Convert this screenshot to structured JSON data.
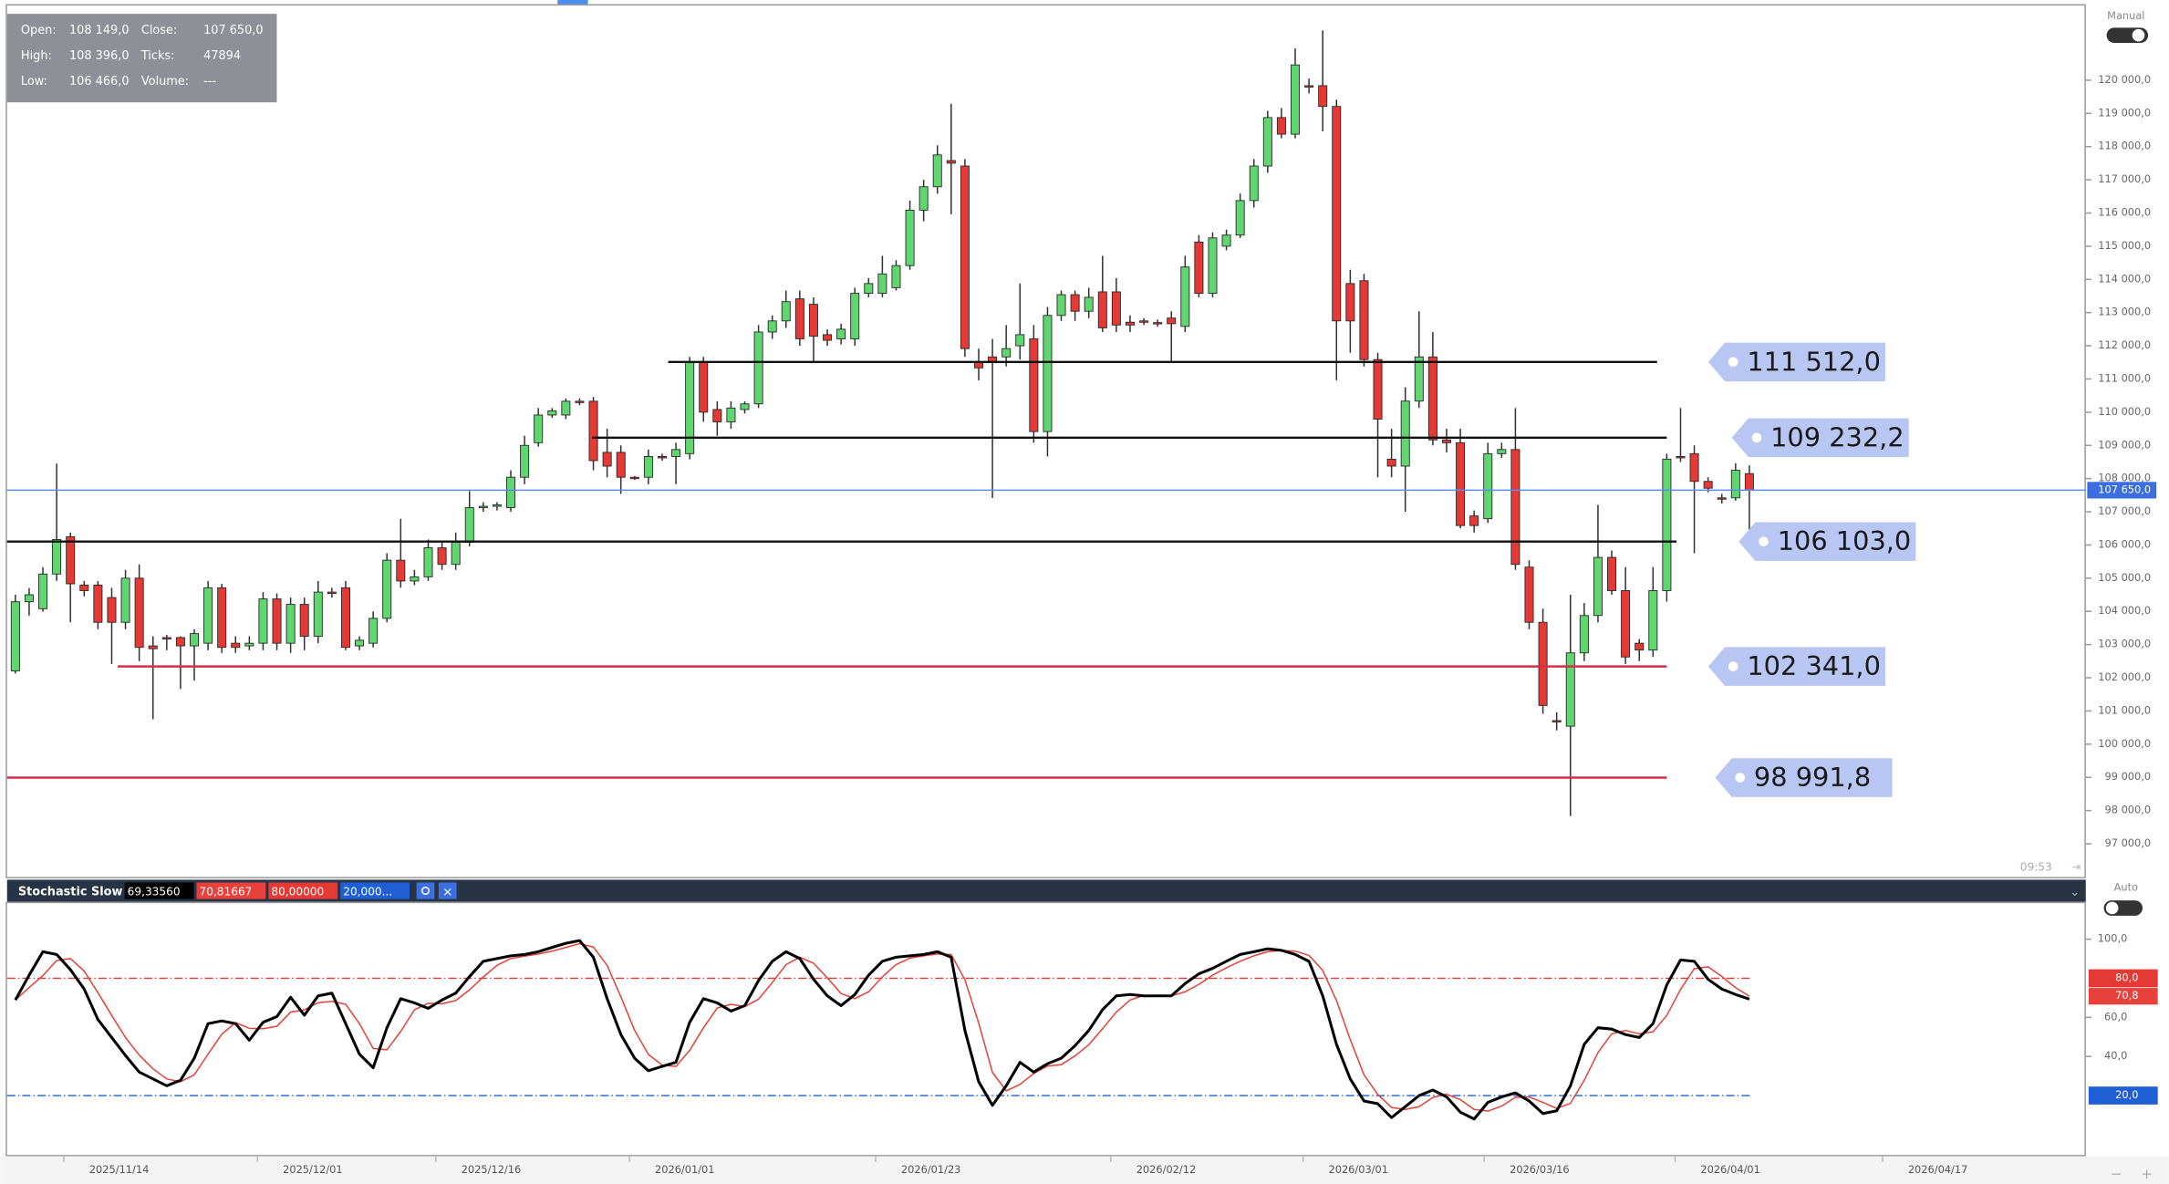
{
  "chart_data": {
    "type": "candlestick",
    "info": {
      "rows": [
        [
          {
            "label": "Open:",
            "value": "108 149,0"
          },
          {
            "label": "Close:",
            "value": "107 650,0"
          }
        ],
        [
          {
            "label": "High:",
            "value": "108 396,0"
          },
          {
            "label": "Ticks:",
            "value": "47894"
          }
        ],
        [
          {
            "label": "Low:",
            "value": "106 466,0"
          },
          {
            "label": "Volume:",
            "value": "---"
          }
        ]
      ]
    },
    "mode_label": "Manual",
    "time_label": "09:53",
    "up_color": "#5fd66f",
    "down_color": "#e53935",
    "open": [
      102207,
      104290,
      104080,
      105125,
      106250,
      104790,
      104790,
      104415,
      103670,
      105000,
      102960,
      103210,
      103210,
      102960,
      103040,
      104710,
      103040,
      102960,
      103040,
      104375,
      103040,
      104210,
      103250,
      104580,
      104710,
      102960,
      103040,
      103790,
      105540,
      104915,
      105040,
      105915,
      105415,
      106080,
      107125,
      107165,
      107125,
      108040,
      109080,
      109915,
      109915,
      110330,
      110330,
      108790,
      108790,
      108040,
      108040,
      108665,
      108665,
      108750,
      111500,
      110080,
      109710,
      110080,
      110250,
      112415,
      112750,
      113415,
      113250,
      112335,
      112210,
      112210,
      113580,
      113580,
      113750,
      114415,
      116085,
      116790,
      117580,
      117415,
      111500,
      111665,
      111665,
      112000,
      112210,
      109415,
      112915,
      113540,
      113040,
      113625,
      113625,
      112710,
      112750,
      112700,
      112835,
      112585,
      115125,
      113580,
      115000,
      115335,
      116375,
      117415,
      118875,
      118375,
      119835,
      119835,
      119210,
      113875,
      113960,
      111585,
      108585,
      108375,
      110335,
      111665,
      109165,
      109080,
      106875,
      106790,
      108750,
      108875,
      105333,
      103670,
      100710,
      100540,
      102750,
      103875,
      105625,
      104625,
      103040,
      102835,
      104625,
      108665,
      108750,
      107915,
      107420,
      107420,
      108149
    ],
    "high": [
      104500,
      104700,
      105330,
      108450,
      106375,
      104915,
      104915,
      104710,
      105250,
      105415,
      103250,
      103290,
      103250,
      103460,
      104915,
      104830,
      103250,
      103250,
      104580,
      104540,
      104415,
      104415,
      104915,
      104710,
      104915,
      103250,
      104000,
      105750,
      106790,
      105250,
      106165,
      106080,
      106375,
      107625,
      107290,
      107290,
      108250,
      109290,
      110125,
      110125,
      110415,
      110415,
      110460,
      109500,
      109000,
      108080,
      108875,
      108750,
      109080,
      111665,
      111665,
      110330,
      110330,
      110330,
      112625,
      112915,
      113665,
      113665,
      113460,
      112500,
      112665,
      113750,
      114040,
      114710,
      114580,
      116375,
      117000,
      118040,
      119290,
      117625,
      111915,
      112210,
      112625,
      113875,
      112625,
      113165,
      113665,
      113665,
      113750,
      114710,
      114040,
      112915,
      112830,
      112790,
      113040,
      114710,
      115335,
      115415,
      115500,
      116585,
      117625,
      119080,
      119165,
      120960,
      120050,
      121500,
      119415,
      114290,
      114165,
      111790,
      109500,
      110750,
      113040,
      112415,
      109500,
      109500,
      107040,
      109080,
      109080,
      110125,
      105540,
      104080,
      100960,
      104500,
      104250,
      107210,
      105835,
      105335,
      103165,
      105335,
      108750,
      110125,
      109000,
      108040,
      107540,
      108460,
      108396
    ],
    "low": [
      102125,
      103870,
      103990,
      104915,
      103670,
      104450,
      103460,
      102415,
      103460,
      102500,
      100750,
      102830,
      101665,
      101915,
      102830,
      102750,
      102750,
      102830,
      102830,
      102830,
      102750,
      102830,
      103040,
      104415,
      102830,
      102830,
      102915,
      103670,
      104710,
      104790,
      104915,
      105250,
      105250,
      105960,
      107000,
      107040,
      107000,
      107830,
      108960,
      109830,
      109790,
      110210,
      108250,
      108040,
      107540,
      107960,
      107830,
      108540,
      107830,
      108580,
      109710,
      109290,
      109500,
      109960,
      110125,
      112210,
      112540,
      112000,
      111500,
      112000,
      112040,
      112000,
      113460,
      113460,
      113665,
      114290,
      115750,
      116580,
      115960,
      111665,
      110960,
      107415,
      111375,
      111585,
      109080,
      108665,
      112750,
      112750,
      112830,
      112415,
      112415,
      112415,
      112625,
      112580,
      111500,
      112415,
      113460,
      113460,
      114875,
      115250,
      116165,
      117210,
      118250,
      118250,
      119600,
      118460,
      110960,
      111790,
      111375,
      108040,
      108040,
      107000,
      110125,
      109000,
      108790,
      106500,
      106375,
      106665,
      108625,
      105250,
      103460,
      100915,
      100415,
      97835,
      102500,
      103665,
      104500,
      102415,
      102500,
      102625,
      104290,
      108500,
      105750,
      107585,
      107250,
      107335,
      106466
    ],
    "close": [
      104290,
      104500,
      105125,
      106165,
      104830,
      104625,
      103670,
      103670,
      105000,
      102915,
      102875,
      103170,
      102960,
      103330,
      104710,
      102915,
      102915,
      103040,
      104375,
      103040,
      104210,
      103250,
      104580,
      104540,
      102915,
      103130,
      103790,
      105540,
      104915,
      105040,
      105915,
      105415,
      106080,
      107125,
      107165,
      107210,
      108040,
      109000,
      109915,
      110040,
      110330,
      110290,
      108540,
      108375,
      108040,
      108000,
      108665,
      108625,
      108875,
      111500,
      110000,
      109710,
      110125,
      110250,
      112415,
      112750,
      113330,
      112210,
      112290,
      112165,
      112500,
      113580,
      113875,
      114165,
      114415,
      116085,
      116790,
      117750,
      117500,
      111915,
      111335,
      111500,
      111915,
      112335,
      109415,
      112915,
      113540,
      113040,
      113460,
      112540,
      112625,
      112625,
      112710,
      112670,
      112665,
      114375,
      113580,
      115250,
      115335,
      116375,
      117415,
      118875,
      118375,
      120460,
      119830,
      119210,
      112750,
      112750,
      111585,
      109790,
      108375,
      110335,
      111665,
      109165,
      109080,
      106585,
      106585,
      108750,
      108875,
      105415,
      103670,
      101165,
      100670,
      102750,
      103875,
      105625,
      104625,
      102625,
      102835,
      104625,
      108585,
      108625,
      107915,
      107710,
      107380,
      108250,
      107650
    ],
    "ylim": [
      96000,
      122208
    ],
    "yticks": [
      {
        "value": 97000,
        "label": "97 000,0"
      },
      {
        "value": 98000,
        "label": "98 000,0"
      },
      {
        "value": 99000,
        "label": "99 000,0"
      },
      {
        "value": 100000,
        "label": "100 000,0"
      },
      {
        "value": 101000,
        "label": "101 000,0"
      },
      {
        "value": 102000,
        "label": "102 000,0"
      },
      {
        "value": 103000,
        "label": "103 000,0"
      },
      {
        "value": 104000,
        "label": "104 000,0"
      },
      {
        "value": 105000,
        "label": "105 000,0"
      },
      {
        "value": 106000,
        "label": "106 000,0"
      },
      {
        "value": 107000,
        "label": "107 000,0"
      },
      {
        "value": 108000,
        "label": "108 000,0"
      },
      {
        "value": 109000,
        "label": "109 000,0"
      },
      {
        "value": 110000,
        "label": "110 000,0"
      },
      {
        "value": 111000,
        "label": "111 000,0"
      },
      {
        "value": 112000,
        "label": "112 000,0"
      },
      {
        "value": 113000,
        "label": "113 000,0"
      },
      {
        "value": 114000,
        "label": "114 000,0"
      },
      {
        "value": 115000,
        "label": "115 000,0"
      },
      {
        "value": 116000,
        "label": "116 000,0"
      },
      {
        "value": 117000,
        "label": "117 000,0"
      },
      {
        "value": 118000,
        "label": "118 000,0"
      },
      {
        "value": 119000,
        "label": "119 000,0"
      },
      {
        "value": 120000,
        "label": "120 000,0"
      }
    ],
    "last_price": {
      "value": 107650,
      "label": "107 650,0",
      "color": "#5b8def"
    },
    "levels": [
      {
        "value": 111512,
        "label": "111 512,0",
        "color": "#111111"
      },
      {
        "value": 109232.2,
        "label": "109 232,2",
        "color": "#111111"
      },
      {
        "value": 106103,
        "label": "106 103,0",
        "color": "#111111"
      },
      {
        "value": 102341,
        "label": "102 341,0",
        "color": "#d32f4a"
      },
      {
        "value": 98991.8,
        "label": "98 991,8",
        "color": "#d32f4a"
      }
    ],
    "x_labels": [
      "2025/11/14",
      "2025/12/01",
      "2025/12/16",
      "2026/01/01",
      "2026/01/23",
      "2026/02/12",
      "2026/03/01",
      "2026/03/16",
      "2026/04/01",
      "2026/04/17"
    ],
    "indicator": {
      "title": "Stochastic Slow",
      "mode_label": "Auto",
      "ylim": [
        -10.4,
        117
      ],
      "yticks": [
        {
          "value": 100,
          "label": "100,0"
        },
        {
          "value": 60,
          "label": "60,0"
        },
        {
          "value": 40,
          "label": "40,0"
        }
      ],
      "series": [
        {
          "color": "#000000",
          "last": {
            "value": 69.3356,
            "label": "69,33560"
          },
          "values": [
            68.9,
            81.6,
            93.6,
            92.2,
            84.4,
            74.5,
            58.9,
            49.7,
            40.5,
            32.0,
            28.5,
            25.0,
            27.8,
            39.1,
            56.8,
            58.2,
            56.8,
            48.3,
            57.5,
            60.4,
            70.3,
            61.1,
            71.0,
            72.4,
            56.8,
            41.2,
            34.2,
            54.7,
            69.6,
            67.4,
            64.6,
            68.9,
            72.4,
            80.9,
            88.7,
            90.1,
            91.5,
            92.2,
            93.6,
            95.8,
            97.9,
            99.3,
            90.8,
            69.6,
            51.2,
            39.1,
            32.7,
            34.9,
            37.0,
            57.5,
            69.6,
            67.4,
            63.2,
            66.0,
            78.8,
            88.7,
            93.6,
            90.1,
            79.5,
            71.0,
            66.0,
            71.7,
            81.6,
            88.7,
            90.8,
            91.5,
            92.2,
            93.6,
            90.8,
            53.3,
            27.1,
            15.0,
            25.0,
            37.0,
            32.0,
            36.3,
            39.1,
            45.5,
            53.3,
            63.9,
            71.0,
            71.7,
            71.0,
            71.0,
            71.0,
            77.3,
            82.3,
            85.1,
            88.7,
            92.2,
            93.6,
            95.1,
            94.3,
            92.2,
            88.7,
            71.0,
            46.2,
            28.5,
            17.2,
            15.8,
            8.7,
            14.3,
            20.0,
            22.8,
            19.3,
            11.5,
            8.0,
            16.5,
            19.3,
            21.4,
            17.2,
            10.8,
            12.2,
            25.0,
            46.2,
            54.7,
            54.0,
            51.2,
            49.7,
            56.8,
            76.6,
            89.4,
            88.7,
            79.5,
            74.5,
            71.7,
            69.3356
          ]
        },
        {
          "color": "#e8413b",
          "last": {
            "value": 70.81667,
            "label": "70,81667"
          },
          "axis_label": {
            "value": 70.8,
            "label": "70,8"
          },
          "values": [
            68.9,
            75.3,
            81.4,
            89.1,
            90.1,
            83.7,
            72.6,
            61.0,
            49.7,
            40.7,
            33.7,
            28.5,
            27.1,
            30.6,
            41.2,
            51.4,
            57.3,
            54.4,
            54.2,
            55.4,
            62.7,
            63.9,
            67.5,
            68.2,
            66.7,
            56.8,
            44.1,
            43.4,
            52.8,
            63.9,
            67.2,
            67.0,
            68.6,
            74.1,
            80.7,
            86.6,
            90.1,
            91.3,
            92.4,
            93.9,
            95.8,
            97.7,
            96.0,
            86.6,
            70.5,
            53.3,
            41.0,
            35.6,
            34.9,
            43.1,
            54.7,
            64.8,
            66.7,
            65.5,
            69.3,
            77.8,
            87.0,
            90.8,
            87.7,
            80.2,
            72.2,
            69.6,
            73.1,
            80.7,
            87.0,
            90.3,
            91.5,
            92.4,
            92.2,
            79.2,
            57.1,
            31.8,
            22.4,
            25.7,
            31.3,
            35.1,
            35.8,
            40.3,
            46.0,
            54.2,
            62.7,
            68.9,
            71.2,
            71.2,
            71.0,
            73.1,
            76.9,
            81.6,
            85.4,
            88.7,
            91.5,
            93.6,
            94.3,
            93.9,
            91.7,
            84.0,
            68.6,
            48.6,
            30.6,
            20.5,
            13.9,
            12.9,
            14.3,
            19.0,
            20.7,
            17.9,
            12.9,
            12.0,
            14.6,
            19.1,
            19.3,
            16.5,
            13.4,
            16.0,
            27.8,
            42.0,
            51.6,
            53.3,
            51.6,
            52.6,
            61.0,
            74.3,
            84.9,
            85.9,
            80.9,
            75.2,
            70.81667
          ]
        }
      ],
      "levels": [
        {
          "value": 80,
          "label": "80,0",
          "legend_label": "80,00000",
          "color": "#e53935"
        },
        {
          "value": 20,
          "label": "20,0",
          "legend_label": "20,000...",
          "color": "#1e5fd6"
        }
      ]
    }
  }
}
